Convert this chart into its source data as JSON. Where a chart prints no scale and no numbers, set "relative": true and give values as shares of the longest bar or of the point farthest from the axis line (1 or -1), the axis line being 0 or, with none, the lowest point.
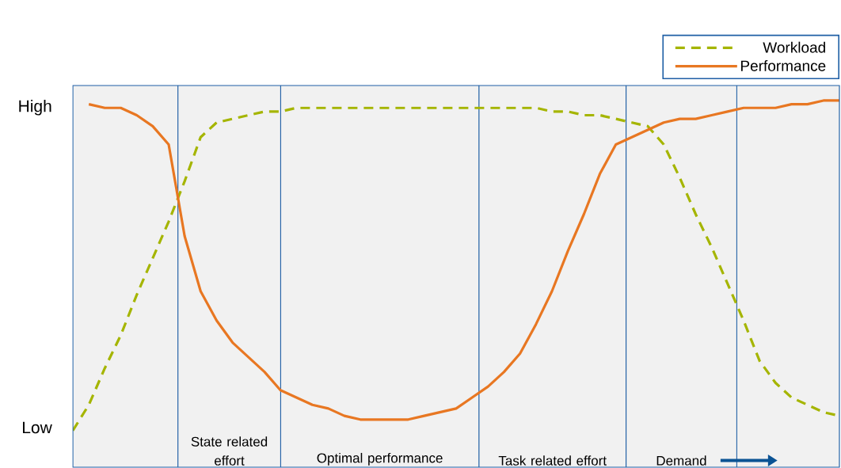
{
  "chart_data": {
    "type": "line",
    "relative": true,
    "categories": [
      null,
      null,
      null,
      null,
      null,
      null,
      null,
      null,
      null,
      null,
      null,
      null,
      null,
      null,
      null,
      null,
      null,
      null,
      null,
      null,
      null,
      null,
      null,
      null,
      null,
      null,
      null,
      null,
      null,
      null,
      null,
      null,
      null,
      null,
      null,
      null,
      null,
      null,
      null,
      null,
      null,
      null,
      null,
      null,
      null,
      null,
      null,
      null,
      null
    ],
    "legend": "top right",
    "marker": "none",
    "annotations": [
      "High",
      "Low",
      "State related effort",
      "Optimal performance",
      "Task related effort",
      "Demand"
    ],
    "series": [
      {
        "name": "Workload",
        "color": "#a5b500",
        "line_style": "dashed",
        "values": [
          0.1,
          0.17,
          0.27,
          0.36,
          0.47,
          0.57,
          0.67,
          0.78,
          0.9,
          0.94,
          0.95,
          0.96,
          0.97,
          0.97,
          0.98,
          0.98,
          0.98,
          0.98,
          0.98,
          0.98,
          0.98,
          0.98,
          0.98,
          0.98,
          0.98,
          0.98,
          0.98,
          0.98,
          0.98,
          0.98,
          0.97,
          0.97,
          0.96,
          0.96,
          0.95,
          0.94,
          0.93,
          0.88,
          0.79,
          0.69,
          0.6,
          0.5,
          0.4,
          0.29,
          0.23,
          0.19,
          0.17,
          0.15,
          0.14
        ]
      },
      {
        "name": "Performance",
        "color": "#e87722",
        "line_style": "solid",
        "values": [
          null,
          0.99,
          0.98,
          0.98,
          0.96,
          0.93,
          0.88,
          0.63,
          0.48,
          0.4,
          0.34,
          0.3,
          0.26,
          0.21,
          0.19,
          0.17,
          0.16,
          0.14,
          0.13,
          0.13,
          0.13,
          0.13,
          0.14,
          0.15,
          0.16,
          0.19,
          0.22,
          0.26,
          0.31,
          0.39,
          0.48,
          0.59,
          0.69,
          0.8,
          0.88,
          0.9,
          0.92,
          0.94,
          0.95,
          0.95,
          0.96,
          0.97,
          0.98,
          0.98,
          0.98,
          0.99,
          0.99,
          1.0,
          1.0
        ]
      }
    ]
  }
}
